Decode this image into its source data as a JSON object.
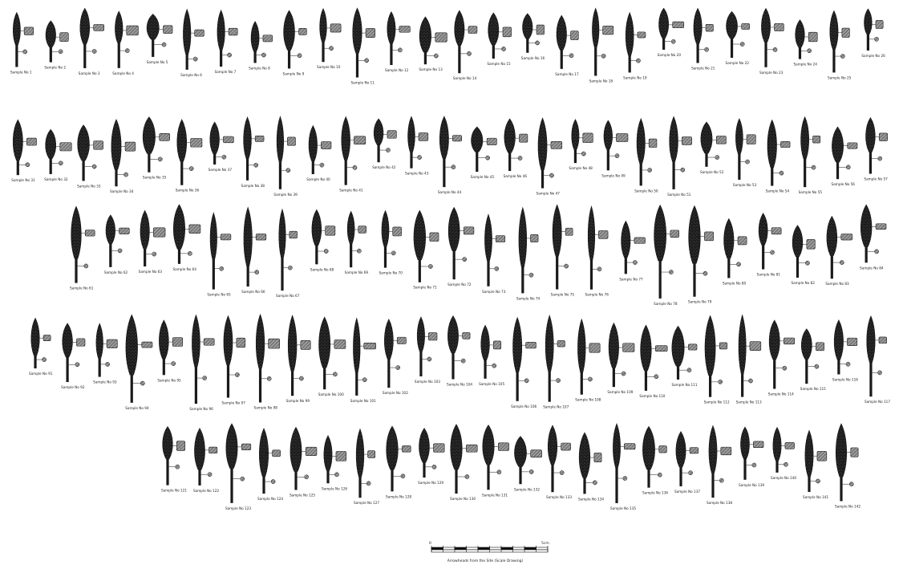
{
  "plate": {
    "rows": [
      {
        "row": 1,
        "count": 26,
        "label_text": "Sample No"
      },
      {
        "row": 2,
        "count": 27,
        "label_text": "Sample No"
      },
      {
        "row": 3,
        "count": 24,
        "label_text": "Sample No"
      },
      {
        "row": 4,
        "count": 27,
        "label_text": "Sample No"
      },
      {
        "row": 5,
        "count": 22,
        "label_text": "Sample No"
      }
    ],
    "colors": {
      "ink": "#1a1a1a",
      "hatch": "#555555",
      "paper": "#ffffff"
    }
  },
  "scale_bar": {
    "zero_label": "0",
    "end_label": "5cm",
    "caption": "Arrowheads from the Site (Scale Drawing)"
  }
}
